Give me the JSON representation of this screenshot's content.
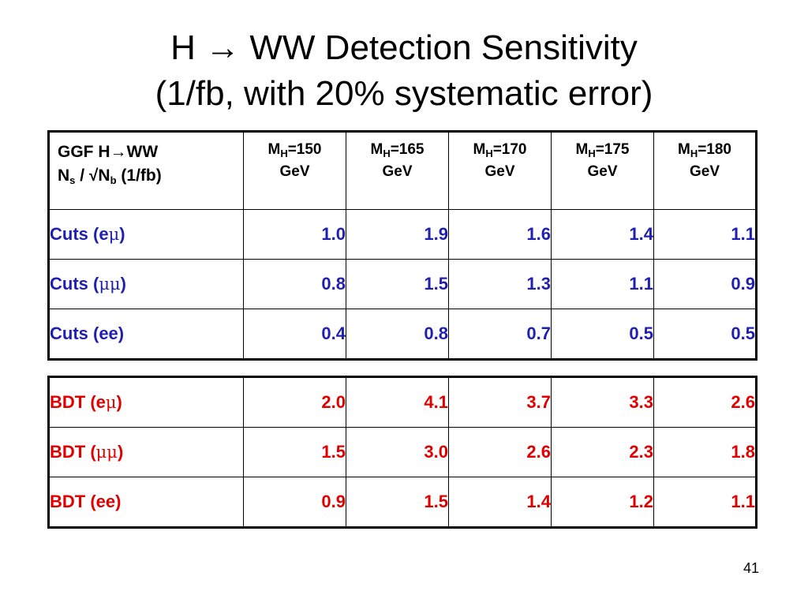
{
  "title": {
    "line1_left": "H",
    "arrow": "→",
    "line1_right": "WW Detection Sensitivity",
    "line2": "(1/fb, with 20% systematic error)"
  },
  "header": {
    "label_line1_left": "GGF H",
    "label_arrow": "→",
    "label_line1_right": "WW",
    "label_line2_n": "N",
    "label_line2_s": "s",
    "label_line2_mid": " / √N",
    "label_line2_b": "b",
    "label_line2_end": " (1/fb)",
    "mass_prefix": "M",
    "mass_sub": "H",
    "unit": "GeV",
    "masses": [
      "=150",
      "=165",
      "=170",
      "=175",
      "=180"
    ]
  },
  "cuts_rows": [
    {
      "label_pre": "Cuts (e",
      "label_greek": "μ",
      "label_post": ")",
      "values": [
        "1.0",
        "1.9",
        "1.6",
        "1.4",
        "1.1"
      ]
    },
    {
      "label_pre": "Cuts (",
      "label_greek": "μμ",
      "label_post": ")",
      "values": [
        "0.8",
        "1.5",
        "1.3",
        "1.1",
        "0.9"
      ]
    },
    {
      "label_pre": "Cuts (ee)",
      "label_greek": "",
      "label_post": "",
      "values": [
        "0.4",
        "0.8",
        "0.7",
        "0.5",
        "0.5"
      ]
    }
  ],
  "bdt_rows": [
    {
      "label_pre": "BDT (e",
      "label_greek": "μ",
      "label_post": ")",
      "values": [
        "2.0",
        "4.1",
        "3.7",
        "3.3",
        "2.6"
      ]
    },
    {
      "label_pre": "BDT (",
      "label_greek": "μμ",
      "label_post": ")",
      "values": [
        "1.5",
        "3.0",
        "2.6",
        "2.3",
        "1.8"
      ]
    },
    {
      "label_pre": "BDT (ee)",
      "label_greek": "",
      "label_post": "",
      "values": [
        "0.9",
        "1.5",
        "1.4",
        "1.2",
        "1.1"
      ]
    }
  ],
  "colors": {
    "cuts": "#1f1fb0",
    "bdt": "#e00000"
  },
  "page_number": "41"
}
